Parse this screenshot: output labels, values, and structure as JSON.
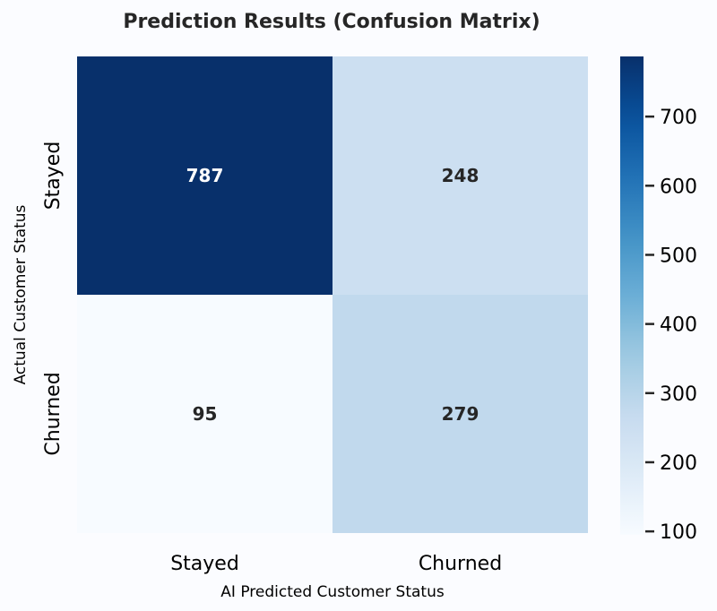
{
  "chart_data": {
    "type": "heatmap",
    "title": "Prediction Results (Confusion Matrix)",
    "xlabel": "AI Predicted Customer Status",
    "ylabel": "Actual Customer Status",
    "x_categories": [
      "Stayed",
      "Churned"
    ],
    "y_categories": [
      "Stayed",
      "Churned"
    ],
    "values": [
      [
        787,
        248
      ],
      [
        95,
        279
      ]
    ],
    "colormap": "Blues",
    "colorbar": {
      "range": [
        95,
        787
      ],
      "ticks": [
        100,
        200,
        300,
        400,
        500,
        600,
        700
      ]
    }
  }
}
